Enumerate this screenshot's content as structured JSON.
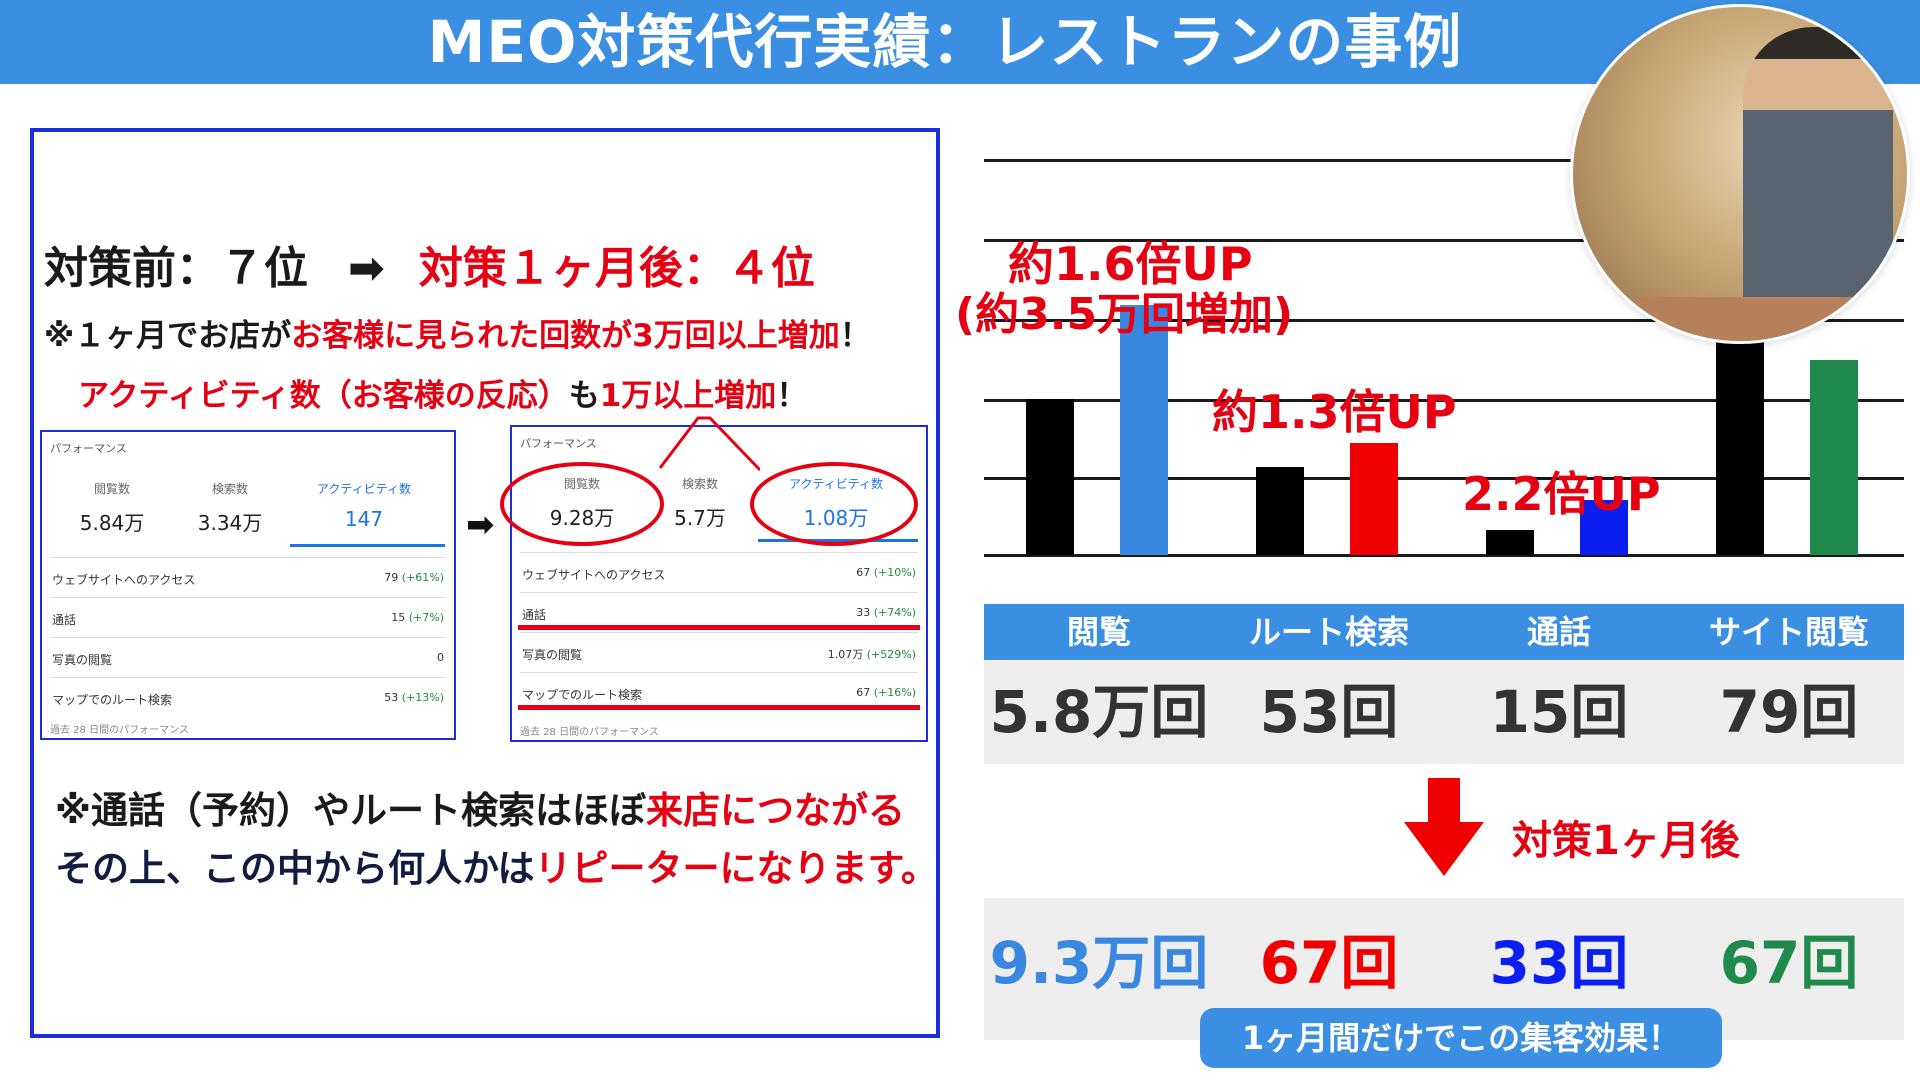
{
  "title": "MEO対策代行実績：レストランの事例",
  "left": {
    "headline_before": "対策前：７位",
    "headline_arrow": "➡",
    "headline_after": "対策１ヶ月後：４位",
    "note1_a": "※１ヶ月でお店が",
    "note1_b": "お客様に見られた回数が3万回以上増加",
    "note1_c": "！",
    "note2_a": "アクティビティ数（お客様の反応）",
    "note2_b": "も",
    "note2_c": "1万以上増加",
    "note2_d": "！",
    "card_before": {
      "title": "パフォーマンス",
      "stats": [
        {
          "label": "閲覧数",
          "value": "5.84万"
        },
        {
          "label": "検索数",
          "value": "3.34万"
        },
        {
          "label": "アクティビティ数",
          "value": "147"
        }
      ],
      "rows": [
        {
          "label": "ウェブサイトへのアクセス",
          "value": "79",
          "delta": "(+61%)"
        },
        {
          "label": "通話",
          "value": "15",
          "delta": "(+7%)"
        },
        {
          "label": "写真の閲覧",
          "value": "0",
          "delta": ""
        },
        {
          "label": "マップでのルート検索",
          "value": "53",
          "delta": "(+13%)"
        }
      ],
      "footer": "過去 28 日間のパフォーマンス"
    },
    "card_after": {
      "title": "パフォーマンス",
      "stats": [
        {
          "label": "閲覧数",
          "value": "9.28万"
        },
        {
          "label": "検索数",
          "value": "5.7万"
        },
        {
          "label": "アクティビティ数",
          "value": "1.08万"
        }
      ],
      "rows": [
        {
          "label": "ウェブサイトへのアクセス",
          "value": "67",
          "delta": "(+10%)"
        },
        {
          "label": "通話",
          "value": "33",
          "delta": "(+74%)"
        },
        {
          "label": "写真の閲覧",
          "value": "1.07万",
          "delta": "(+529%)"
        },
        {
          "label": "マップでのルート検索",
          "value": "67",
          "delta": "(+16%)"
        }
      ],
      "footer": "過去 28 日間のパフォーマンス"
    },
    "mid_arrow": "➡",
    "bottom1_a": "※通話（予約）やルート検索はほぼ",
    "bottom1_b": "来店につながる",
    "bottom2_a": "その上、この中から何人かは",
    "bottom2_b": "リピーターになります。"
  },
  "chart_data": {
    "type": "bar",
    "categories": [
      "閲覧",
      "ルート検索",
      "通話",
      "サイト閲覧"
    ],
    "series": [
      {
        "name": "対策前",
        "values": [
          58000,
          53,
          15,
          79
        ]
      },
      {
        "name": "対策1ヶ月後",
        "values": [
          93000,
          67,
          33,
          67
        ]
      }
    ],
    "annotations": [
      "約1.6倍UP",
      "(約3.5万回増加)",
      "約1.3倍UP",
      "2.2倍UP"
    ],
    "colors": {
      "before": "#000000",
      "after": [
        "#3a87e0",
        "#f00000",
        "#0a1ff0",
        "#1f8a4c"
      ]
    }
  },
  "table": {
    "headers": [
      "閲覧",
      "ルート検索",
      "通話",
      "サイト閲覧"
    ],
    "before": [
      "5.8万回",
      "53回",
      "15回",
      "79回"
    ],
    "after_label": "対策1ヶ月後",
    "after": [
      "9.3万回",
      "67回",
      "33回",
      "67回"
    ],
    "after_colors": [
      "#3a87e0",
      "#f00000",
      "#0a1ff0",
      "#1f8a4c"
    ]
  },
  "pill": "1ヶ月間だけでこの集客効果！"
}
